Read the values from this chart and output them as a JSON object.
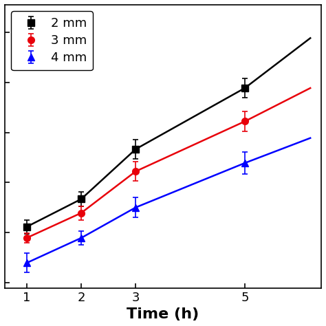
{
  "x": [
    1,
    2,
    3,
    5
  ],
  "x_extend": [
    1,
    2,
    3,
    5,
    6.2
  ],
  "series": [
    {
      "label": "2 mm",
      "color": "#000000",
      "marker": "s",
      "y": [
        20,
        30,
        48,
        70
      ],
      "y_extend": [
        20,
        30,
        48,
        70,
        88
      ],
      "yerr": [
        2.5,
        2.5,
        3.5,
        3.5
      ]
    },
    {
      "label": "3 mm",
      "color": "#e8000a",
      "marker": "o",
      "y": [
        16,
        25,
        40,
        58
      ],
      "y_extend": [
        16,
        25,
        40,
        58,
        70
      ],
      "yerr": [
        1.8,
        2.5,
        3.5,
        3.5
      ]
    },
    {
      "label": "4 mm",
      "color": "#0000ff",
      "marker": "^",
      "y": [
        7,
        16,
        27,
        43
      ],
      "y_extend": [
        7,
        16,
        27,
        43,
        52
      ],
      "yerr": [
        3.5,
        2.5,
        3.5,
        4.0
      ]
    }
  ],
  "xlabel": "Time (h)",
  "xlim": [
    0.6,
    6.4
  ],
  "ylim": [
    -2,
    100
  ],
  "xticks": [
    1,
    2,
    3,
    5
  ],
  "ytick_count": 6,
  "xlabel_fontsize": 16,
  "legend_fontsize": 13,
  "tick_fontsize": 13,
  "linewidth": 1.8,
  "markersize": 7,
  "capsize": 3,
  "figsize": [
    4.74,
    4.74
  ],
  "dpi": 100
}
